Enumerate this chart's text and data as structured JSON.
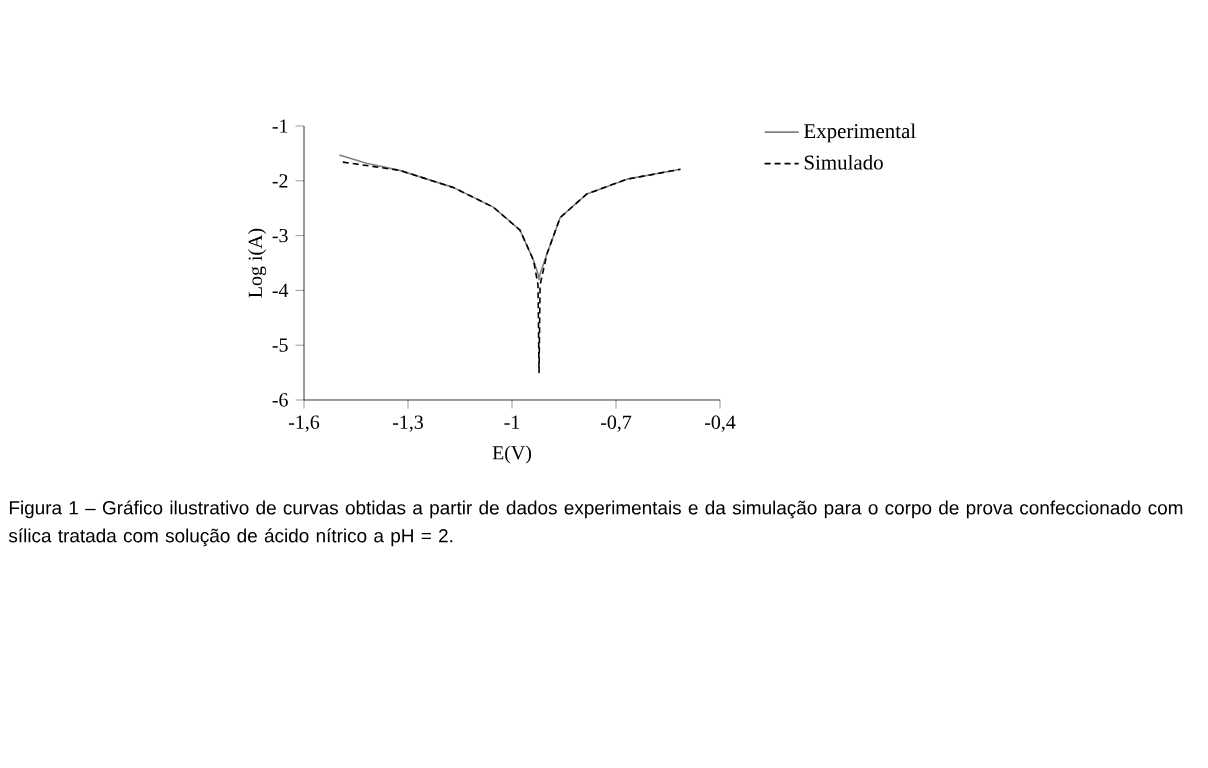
{
  "chart_data": {
    "type": "line",
    "xlabel": "E(V)",
    "ylabel": "Log i(A)",
    "xlim": [
      -1.6,
      -0.4
    ],
    "xticks": [
      {
        "value": -1.6,
        "label": "-1,6"
      },
      {
        "value": -1.3,
        "label": "-1,3"
      },
      -1,
      {
        "value": -0.7,
        "label": "-0,7"
      },
      {
        "value": -0.4,
        "label": "-0,4"
      }
    ],
    "ylim": [
      -6,
      -1
    ],
    "yticks": [
      -6,
      -5,
      -4,
      -3,
      -2,
      -1
    ],
    "grid": false,
    "legend": "top right",
    "marker": "none",
    "series": [
      {
        "name": "Experimental",
        "color": "#808080",
        "line_style": "solid",
        "x": [
          -1.498,
          -1.42,
          -1.324,
          -1.17,
          -1.054,
          -0.977,
          -0.938,
          -0.925,
          -0.922,
          -0.919,
          -0.899,
          -0.861,
          -0.784,
          -0.668,
          -0.514
        ],
        "values": [
          -1.53,
          -1.68,
          -1.81,
          -2.12,
          -2.48,
          -2.9,
          -3.45,
          -3.7,
          -3.8,
          -3.7,
          -3.33,
          -2.67,
          -2.24,
          -1.97,
          -1.79
        ]
      },
      {
        "name": "Simulado",
        "color": "#000000",
        "line_style": "dashed",
        "x": [
          -1.488,
          -1.42,
          -1.324,
          -1.17,
          -1.054,
          -0.977,
          -0.938,
          -0.925,
          -0.922,
          -0.919,
          -0.899,
          -0.861,
          -0.784,
          -0.668,
          -0.514
        ],
        "values": [
          -1.66,
          -1.72,
          -1.81,
          -2.12,
          -2.48,
          -2.9,
          -3.45,
          -3.9,
          -5.5,
          -3.9,
          -3.33,
          -2.67,
          -2.24,
          -1.97,
          -1.79
        ]
      }
    ],
    "annotations": [
      "Figura 1 – Gráfico ilustrativo de curvas obtidas a partir de dados experimentais e da simulação para o corpo de prova confeccionado com sílica tratada com solução de ácido nítrico a pH = 2."
    ]
  }
}
